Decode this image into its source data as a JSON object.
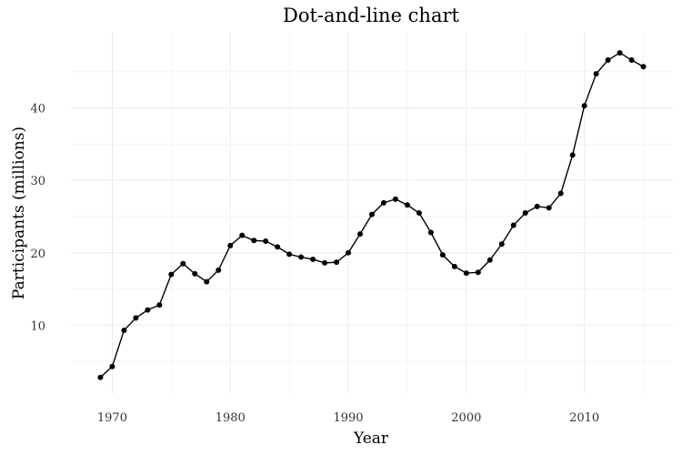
{
  "chart_data": {
    "type": "line",
    "title": "Dot-and-line chart",
    "xlabel": "Year",
    "ylabel": "Participants (millions)",
    "xlim": [
      1966.5,
      2017.5
    ],
    "ylim": [
      0.5,
      50.5
    ],
    "x_ticks": [
      1970,
      1980,
      1990,
      2000,
      2010
    ],
    "y_ticks": [
      10,
      20,
      30,
      40
    ],
    "grid": true,
    "legend": "none",
    "line_color": "#000000",
    "series": [
      {
        "x": [
          1969,
          1970,
          1971,
          1972,
          1973,
          1974,
          1975,
          1976,
          1977,
          1978,
          1979,
          1980,
          1981,
          1982,
          1983,
          1984,
          1985,
          1986,
          1987,
          1988,
          1989,
          1990,
          1991,
          1992,
          1993,
          1994,
          1995,
          1996,
          1997,
          1998,
          1999,
          2000,
          2001,
          2002,
          2003,
          2004,
          2005,
          2006,
          2007,
          2008,
          2009,
          2010,
          2011,
          2012,
          2013,
          2014,
          2015
        ],
        "values": [
          2.8,
          4.3,
          9.3,
          11.0,
          12.1,
          12.8,
          17.0,
          18.5,
          17.1,
          16.0,
          17.6,
          21.0,
          22.4,
          21.7,
          21.6,
          20.8,
          19.8,
          19.4,
          19.1,
          18.6,
          18.7,
          20.0,
          22.6,
          25.3,
          26.9,
          27.4,
          26.6,
          25.5,
          22.8,
          19.7,
          18.1,
          17.2,
          17.3,
          19.0,
          21.2,
          23.8,
          25.5,
          26.4,
          26.2,
          28.2,
          33.5,
          40.3,
          44.7,
          46.6,
          47.6,
          46.6,
          45.7
        ]
      }
    ]
  }
}
